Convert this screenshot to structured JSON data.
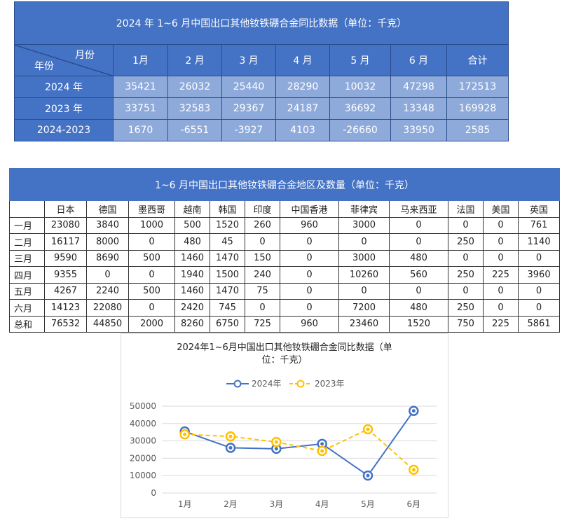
{
  "table1": {
    "title": "2024 年 1~6 月中国出口其他钕铁硼合金同比数据（单位：千克）",
    "corner_top": "月份",
    "corner_bottom": "年份",
    "headers": [
      "1月",
      "2 月",
      "3 月",
      "4 月",
      "5 月",
      "6 月",
      "合计"
    ],
    "rows": [
      {
        "label": "2024 年",
        "values": [
          "35421",
          "26032",
          "25440",
          "28290",
          "10032",
          "47298",
          "172513"
        ]
      },
      {
        "label": "2023 年",
        "values": [
          "33751",
          "32583",
          "29367",
          "24187",
          "36692",
          "13348",
          "169928"
        ]
      },
      {
        "label": "2024-2023",
        "values": [
          "1670",
          "-6551",
          "-3927",
          "4103",
          "-26660",
          "33950",
          "2585"
        ]
      }
    ]
  },
  "table2": {
    "title": "1~6 月中国出口其他钕铁硼合金地区及数量（单位：千克）",
    "headers": [
      "",
      "日本",
      "德国",
      "墨西哥",
      "越南",
      "韩国",
      "印度",
      "中国香港",
      "菲律宾",
      "马来西亚",
      "法国",
      "美国",
      "英国"
    ],
    "rows": [
      {
        "label": "一月",
        "values": [
          "23080",
          "3840",
          "1000",
          "500",
          "1520",
          "260",
          "960",
          "3000",
          "0",
          "0",
          "0",
          "761"
        ]
      },
      {
        "label": "二月",
        "values": [
          "16117",
          "8000",
          "0",
          "480",
          "45",
          "0",
          "0",
          "0",
          "0",
          "250",
          "0",
          "1140"
        ]
      },
      {
        "label": "三月",
        "values": [
          "9590",
          "8690",
          "500",
          "1460",
          "1470",
          "150",
          "0",
          "3000",
          "480",
          "0",
          "0",
          "0"
        ]
      },
      {
        "label": "四月",
        "values": [
          "9355",
          "0",
          "0",
          "1940",
          "1500",
          "240",
          "0",
          "10260",
          "560",
          "250",
          "225",
          "3960"
        ]
      },
      {
        "label": "五月",
        "values": [
          "4267",
          "2240",
          "500",
          "1460",
          "1470",
          "75",
          "0",
          "0",
          "0",
          "0",
          "0",
          "0"
        ]
      },
      {
        "label": "六月",
        "values": [
          "14123",
          "22080",
          "0",
          "2420",
          "745",
          "0",
          "0",
          "7200",
          "480",
          "250",
          "0",
          "0"
        ]
      },
      {
        "label": "总和",
        "values": [
          "76532",
          "44850",
          "2000",
          "8260",
          "6750",
          "725",
          "960",
          "23460",
          "1520",
          "750",
          "225",
          "5861"
        ]
      }
    ]
  },
  "chart_data": {
    "type": "line",
    "title": "2024年1~6月中国出口其他钕铁硼合金同比数据（单位：千克）",
    "title_lines": [
      "2024年1~6月中国出口其他钕铁硼合金同比数据（单",
      "位：千克）"
    ],
    "categories": [
      "1月",
      "2月",
      "3月",
      "4月",
      "5月",
      "6月"
    ],
    "series": [
      {
        "name": "2024年",
        "values": [
          35421,
          26032,
          25440,
          28290,
          10032,
          47298
        ],
        "color": "#4472c4",
        "dashed": false
      },
      {
        "name": "2023年",
        "values": [
          33751,
          32583,
          29367,
          24187,
          36692,
          13348
        ],
        "color": "#ffc000",
        "dashed": true
      }
    ],
    "ylim": [
      0,
      50000
    ],
    "yticks": [
      "50000",
      "40000",
      "30000",
      "20000",
      "10000",
      "0"
    ],
    "grid": true,
    "legend": "top"
  }
}
